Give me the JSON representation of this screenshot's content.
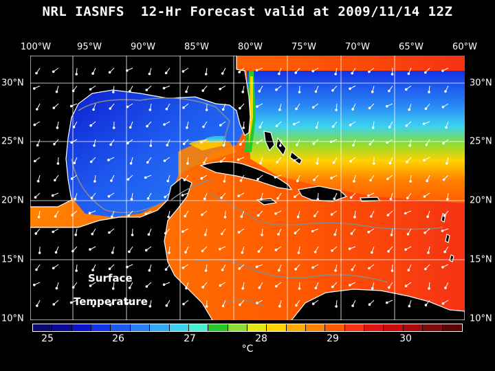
{
  "title": "NRL IASNFS  12-Hr Forecast valid at 2009/11/14 12Z",
  "lon_labels": [
    "100°W",
    "95°W",
    "90°W",
    "85°W",
    "80°W",
    "75°W",
    "70°W",
    "65°W",
    "60°W"
  ],
  "lat_labels": [
    "30°N",
    "25°N",
    "20°N",
    "15°N",
    "10°N"
  ],
  "map_text": {
    "surface": "Surface",
    "temperature": "Temperature"
  },
  "colorbar": {
    "colors": [
      "#0a0a6e",
      "#0a0a96",
      "#0a14c8",
      "#1432e6",
      "#1e5af0",
      "#2882f5",
      "#32aaf5",
      "#3cd2f0",
      "#46f0d2",
      "#28c828",
      "#8cdc32",
      "#e6e614",
      "#ffd200",
      "#ffaa00",
      "#ff8200",
      "#ff5a00",
      "#f53214",
      "#dc1414",
      "#c80a0a",
      "#aa0a0a",
      "#820a0a",
      "#5a0505"
    ],
    "ticks": [
      "25",
      "26",
      "27",
      "28",
      "29",
      "30"
    ],
    "unit": "°C"
  },
  "colors": {
    "background": "#000000",
    "land": "#000000",
    "coastline": "#ffffff",
    "bathymetry": "#888888",
    "grid": "#ffffff",
    "vectors": "#ffffff"
  }
}
